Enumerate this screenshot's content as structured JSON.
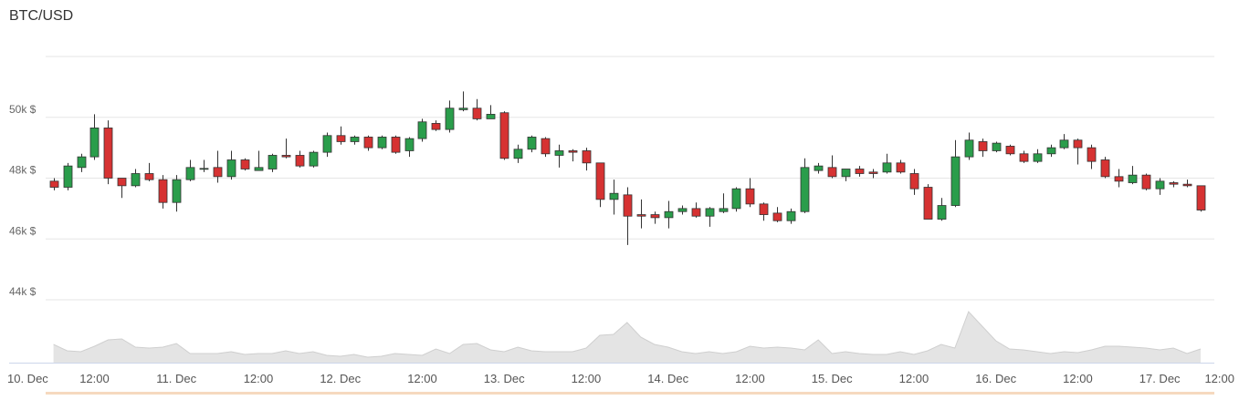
{
  "chart_data": {
    "type": "candlestick",
    "title": "BTC/USD",
    "x": [
      6,
      8,
      10,
      12,
      14,
      16,
      18,
      20,
      22,
      24,
      26,
      28,
      30,
      32,
      34,
      36,
      38,
      40,
      42,
      44,
      46,
      48,
      50,
      52,
      54,
      56,
      58,
      60,
      62,
      64,
      66,
      68,
      70,
      72,
      74,
      76,
      78,
      80,
      82,
      84,
      86,
      88,
      90,
      92,
      94,
      96,
      98,
      100,
      102,
      104,
      106,
      108,
      110,
      112,
      114,
      116,
      118,
      120,
      122,
      124,
      126,
      128,
      130,
      132,
      134,
      136,
      138,
      140,
      142,
      144,
      146,
      148,
      150,
      152,
      154,
      156,
      158,
      160,
      162,
      164,
      166,
      168,
      170,
      172,
      174
    ],
    "open": [
      47900,
      47700,
      48350,
      48700,
      49650,
      48000,
      47750,
      48150,
      47950,
      47200,
      47950,
      48300,
      48350,
      48050,
      48600,
      48250,
      48300,
      48750,
      48750,
      48400,
      48850,
      49400,
      49200,
      49350,
      49000,
      49350,
      48900,
      49300,
      49800,
      49600,
      50250,
      50300,
      49950,
      50150,
      48650,
      48950,
      49300,
      48750,
      48900,
      48900,
      48500,
      47300,
      47450,
      46800,
      46800,
      46700,
      46900,
      47000,
      46750,
      46900,
      47000,
      47650,
      47150,
      46850,
      46600,
      46900,
      48250,
      48350,
      48050,
      48300,
      48200,
      48200,
      48500,
      48150,
      47700,
      46650,
      47100,
      48700,
      49200,
      48900,
      49050,
      48800,
      48550,
      48800,
      49000,
      49250,
      49000,
      48600,
      48050,
      47850,
      48100,
      47650,
      47850,
      47800,
      47750
    ],
    "high": [
      48000,
      48500,
      48800,
      50100,
      49900,
      48000,
      48300,
      48500,
      48100,
      48100,
      48600,
      48600,
      48900,
      48900,
      48650,
      48900,
      48800,
      49300,
      48900,
      48900,
      49500,
      49700,
      49400,
      49400,
      49400,
      49400,
      49350,
      49950,
      49900,
      50550,
      50850,
      50600,
      50400,
      50200,
      49100,
      49400,
      49350,
      49100,
      48950,
      49000,
      48500,
      47950,
      47700,
      47300,
      46900,
      47250,
      47100,
      47200,
      47050,
      47500,
      47700,
      48000,
      47200,
      47050,
      47000,
      48650,
      48500,
      48750,
      48300,
      48400,
      48300,
      48800,
      48600,
      48300,
      47800,
      47350,
      49250,
      49500,
      49300,
      49200,
      49100,
      48900,
      48950,
      49100,
      49450,
      49300,
      49100,
      48700,
      48300,
      48400,
      48150,
      48000,
      47900,
      47950,
      47750
    ],
    "low": [
      47600,
      47600,
      48200,
      48600,
      47800,
      47350,
      47700,
      47900,
      47000,
      46900,
      47900,
      48200,
      47850,
      47950,
      48250,
      48250,
      48200,
      48650,
      48350,
      48350,
      48700,
      49100,
      49100,
      48900,
      48950,
      48800,
      48700,
      49200,
      49550,
      49500,
      50200,
      49900,
      49950,
      48600,
      48500,
      48850,
      48700,
      48350,
      48550,
      48250,
      47050,
      46800,
      45800,
      46350,
      46500,
      46350,
      46800,
      46700,
      46400,
      46850,
      46900,
      47050,
      46600,
      46550,
      46500,
      46850,
      48150,
      48000,
      47900,
      48050,
      48000,
      48150,
      48150,
      47450,
      46650,
      46600,
      47050,
      48600,
      48700,
      48850,
      48750,
      48500,
      48500,
      48700,
      48950,
      48450,
      48300,
      48000,
      47700,
      47800,
      47600,
      47450,
      47700,
      47700,
      46900
    ],
    "close": [
      47700,
      48400,
      48700,
      49650,
      48000,
      47750,
      48150,
      47950,
      47200,
      47950,
      48350,
      48320,
      48050,
      48600,
      48300,
      48350,
      48750,
      48700,
      48400,
      48850,
      49400,
      49200,
      49350,
      49000,
      49350,
      48850,
      49300,
      49850,
      49600,
      50300,
      50300,
      49950,
      50100,
      48650,
      48950,
      49350,
      48800,
      48900,
      48850,
      48500,
      47300,
      47500,
      46750,
      46750,
      46700,
      46900,
      47000,
      46750,
      47000,
      47000,
      47650,
      47150,
      46800,
      46600,
      46900,
      48350,
      48400,
      48050,
      48300,
      48150,
      48150,
      48500,
      48200,
      47650,
      46650,
      47100,
      48700,
      49250,
      48900,
      49150,
      48800,
      48550,
      48800,
      49000,
      49250,
      49000,
      48550,
      48050,
      47900,
      48100,
      47650,
      47900,
      47800,
      47750,
      46950
    ],
    "up_color": "#2a9d4b",
    "down_color": "#d63232",
    "volume": {
      "color": "#e4e4e4",
      "values": [
        20,
        13,
        12,
        18,
        25,
        26,
        17,
        16,
        17,
        21,
        10,
        10,
        10,
        12,
        9,
        10,
        10,
        13,
        10,
        12,
        8,
        7,
        9,
        6,
        7,
        10,
        9,
        8,
        15,
        10,
        20,
        21,
        14,
        12,
        17,
        13,
        12,
        12,
        12,
        16,
        30,
        31,
        44,
        28,
        20,
        17,
        12,
        10,
        12,
        10,
        12,
        18,
        16,
        17,
        16,
        14,
        25,
        10,
        12,
        10,
        9,
        9,
        12,
        9,
        13,
        20,
        16,
        56,
        40,
        24,
        15,
        14,
        12,
        10,
        12,
        11,
        14,
        18,
        18,
        17,
        16,
        14,
        16,
        10,
        15
      ]
    },
    "volume_ylim": [
      0,
      60
    ],
    "xlim": [
      -0.5,
      176
    ],
    "xticks": [
      {
        "value": 0,
        "label": "10. Dec"
      },
      {
        "value": 12,
        "label": "12:00"
      },
      {
        "value": 24,
        "label": "11. Dec"
      },
      {
        "value": 36,
        "label": "12:00"
      },
      {
        "value": 48,
        "label": "12. Dec"
      },
      {
        "value": 60,
        "label": "12:00"
      },
      {
        "value": 72,
        "label": "13. Dec"
      },
      {
        "value": 84,
        "label": "12:00"
      },
      {
        "value": 96,
        "label": "14. Dec"
      },
      {
        "value": 108,
        "label": "12:00"
      },
      {
        "value": 120,
        "label": "15. Dec"
      },
      {
        "value": 132,
        "label": "12:00"
      },
      {
        "value": 144,
        "label": "16. Dec"
      },
      {
        "value": 156,
        "label": "12:00"
      },
      {
        "value": 168,
        "label": "17. Dec"
      },
      {
        "value": 180,
        "label": "12:00"
      }
    ],
    "ylim": [
      44000,
      52000
    ],
    "yticks": [
      {
        "value": 44000,
        "label": "44k $"
      },
      {
        "value": 46000,
        "label": "46k $"
      },
      {
        "value": 48000,
        "label": "48k $"
      },
      {
        "value": 50000,
        "label": "50k $"
      }
    ],
    "grid": true
  }
}
